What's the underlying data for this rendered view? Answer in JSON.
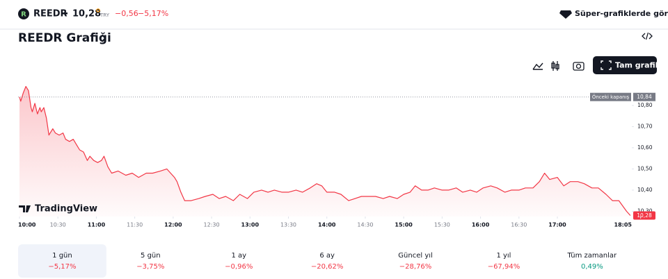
{
  "header": {
    "logo_letter": "R",
    "symbol": "REEDR",
    "price": "10,28",
    "currency": "TRY",
    "change": "−0,56",
    "change_pct": "−5,17%",
    "link": "Süper-grafiklerde görün"
  },
  "title": "REEDR Grafiği",
  "toolbar": {
    "button": "Tam grafik"
  },
  "chart_data": {
    "type": "line",
    "color": "#f23645",
    "x": [
      0,
      1,
      3,
      5,
      7,
      9,
      10,
      12,
      14,
      16,
      17,
      19,
      21,
      23,
      26,
      28,
      31,
      34,
      36,
      39,
      42,
      45,
      47,
      50,
      53,
      55,
      58,
      61,
      64,
      66,
      69,
      72,
      77,
      83,
      88,
      93,
      99,
      104,
      110,
      115,
      118,
      121,
      123,
      126,
      129,
      134,
      140,
      145,
      151,
      156,
      161,
      167,
      172,
      178,
      183,
      189,
      194,
      199,
      205,
      210,
      216,
      221,
      227,
      232,
      236,
      240,
      246,
      251,
      257,
      262,
      267,
      273,
      278,
      284,
      289,
      295,
      300,
      305,
      309,
      314,
      319,
      324,
      330,
      335,
      341,
      346,
      352,
      357,
      362,
      368,
      373,
      379,
      384,
      390,
      395,
      401,
      406,
      410,
      414,
      420,
      425,
      430,
      436,
      441,
      447,
      452,
      458,
      463,
      468,
      474,
      477
    ],
    "values": [
      10.84,
      10.82,
      10.86,
      10.89,
      10.87,
      10.79,
      10.77,
      10.81,
      10.76,
      10.79,
      10.77,
      10.79,
      10.74,
      10.66,
      10.69,
      10.67,
      10.66,
      10.67,
      10.64,
      10.63,
      10.64,
      10.61,
      10.59,
      10.58,
      10.54,
      10.56,
      10.54,
      10.53,
      10.54,
      10.56,
      10.51,
      10.48,
      10.49,
      10.47,
      10.48,
      10.46,
      10.48,
      10.48,
      10.49,
      10.5,
      10.48,
      10.46,
      10.44,
      10.39,
      10.35,
      10.35,
      10.36,
      10.37,
      10.38,
      10.36,
      10.37,
      10.35,
      10.38,
      10.36,
      10.39,
      10.4,
      10.39,
      10.4,
      10.39,
      10.39,
      10.4,
      10.39,
      10.41,
      10.43,
      10.42,
      10.39,
      10.39,
      10.38,
      10.35,
      10.36,
      10.37,
      10.37,
      10.37,
      10.36,
      10.37,
      10.36,
      10.38,
      10.39,
      10.42,
      10.4,
      10.4,
      10.41,
      10.4,
      10.4,
      10.41,
      10.39,
      10.4,
      10.39,
      10.41,
      10.42,
      10.41,
      10.39,
      10.4,
      10.4,
      10.41,
      10.41,
      10.44,
      10.48,
      10.45,
      10.46,
      10.42,
      10.44,
      10.44,
      10.43,
      10.41,
      10.41,
      10.38,
      10.35,
      10.35,
      10.3,
      10.28
    ],
    "xlim": [
      0,
      485
    ],
    "xticks": [
      {
        "value": 0,
        "label": "10:00"
      },
      {
        "value": 30,
        "label": "10:30"
      },
      {
        "value": 60,
        "label": "11:00"
      },
      {
        "value": 90,
        "label": "11:30"
      },
      {
        "value": 120,
        "label": "12:00"
      },
      {
        "value": 150,
        "label": "12:30"
      },
      {
        "value": 180,
        "label": "13:00"
      },
      {
        "value": 210,
        "label": "13:30"
      },
      {
        "value": 240,
        "label": "14:00"
      },
      {
        "value": 270,
        "label": "14:30"
      },
      {
        "value": 300,
        "label": "15:00"
      },
      {
        "value": 330,
        "label": "15:30"
      },
      {
        "value": 360,
        "label": "16:00"
      },
      {
        "value": 390,
        "label": "16:30"
      },
      {
        "value": 420,
        "label": "17:00"
      },
      {
        "value": 485,
        "label": "18:05"
      }
    ],
    "ylim": [
      10.275,
      10.885
    ],
    "yticks": [
      {
        "value": 10.3,
        "label": "10,30"
      },
      {
        "value": 10.4,
        "label": "10,40"
      },
      {
        "value": 10.5,
        "label": "10,50"
      },
      {
        "value": 10.6,
        "label": "10,60"
      },
      {
        "value": 10.7,
        "label": "10,70"
      },
      {
        "value": 10.8,
        "label": "10,80"
      }
    ],
    "prev_close": {
      "value": 10.84,
      "label": "10,84"
    },
    "prev_close_text": "Önceki kapanış",
    "watermark": "TradingView"
  },
  "periods": [
    {
      "label": "1 gün",
      "change": "−5,17%"
    },
    {
      "label": "5 gün",
      "change": "−3,75%"
    },
    {
      "label": "1 ay",
      "change": "−0,96%"
    },
    {
      "label": "6 ay",
      "change": "−20,62%"
    },
    {
      "label": "Güncel yıl",
      "change": "−28,76%"
    },
    {
      "label": "1 yıl",
      "change": "−67,94%"
    },
    {
      "label": "Tüm zamanlar",
      "change": "0,49%"
    }
  ],
  "selected_period": 0
}
